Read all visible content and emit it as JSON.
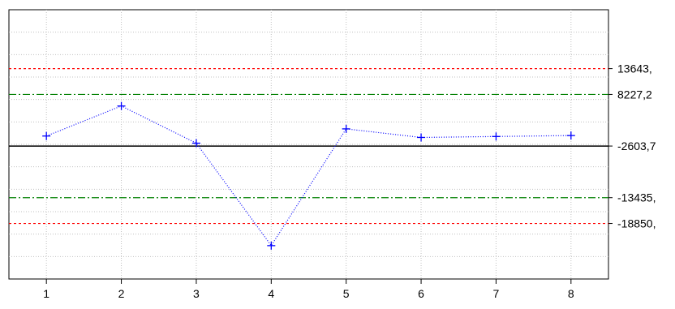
{
  "chart_data": {
    "type": "line",
    "title": "",
    "xlabel": "",
    "ylabel": "",
    "x": [
      1,
      2,
      3,
      4,
      5,
      6,
      7,
      8
    ],
    "x_tick_labels": [
      "1",
      "2",
      "3",
      "4",
      "5",
      "6",
      "7",
      "8"
    ],
    "series": [
      {
        "name": "",
        "values": [
          -500,
          5800,
          -2000,
          -23500,
          1000,
          -800,
          -600,
          -400
        ],
        "color": "#0000ff",
        "marker": "plus",
        "line_style": "dotted"
      }
    ],
    "reference_lines": [
      {
        "value": 13643,
        "label": "13643,",
        "color": "#ff0000",
        "style": "dashed"
      },
      {
        "value": 8227.2,
        "label": "8227,2",
        "color": "#008000",
        "style": "dash-dot"
      },
      {
        "value": -2603.7,
        "label": "-2603,7",
        "color": "#000000",
        "style": "solid"
      },
      {
        "value": -13435,
        "label": "-13435,",
        "color": "#008000",
        "style": "dash-dot"
      },
      {
        "value": -18850,
        "label": "-18850,",
        "color": "#ff0000",
        "style": "dashed"
      }
    ],
    "xlim": [
      0.5,
      8.5
    ],
    "ylim": [
      -30500,
      26000
    ],
    "grid": true,
    "legend": "none",
    "colors": {
      "grid": "#c0c0c0",
      "frame": "#000000",
      "background": "#ffffff"
    }
  }
}
